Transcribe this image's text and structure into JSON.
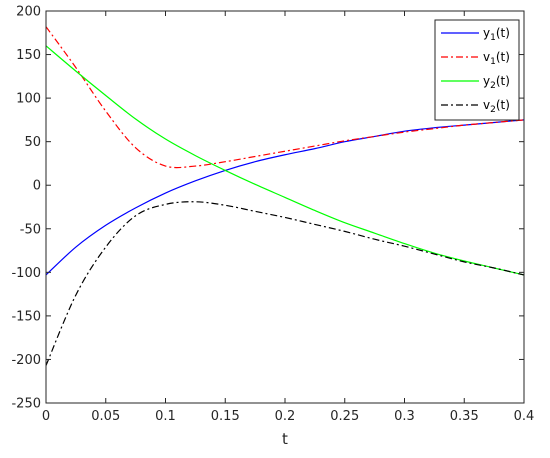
{
  "chart_data": {
    "type": "line",
    "title": "",
    "xlabel": "t",
    "ylabel": "",
    "xlim": [
      0,
      0.4
    ],
    "ylim": [
      -250,
      200
    ],
    "grid": false,
    "legend_position": "top-right",
    "x_ticks": [
      0,
      0.05,
      0.1,
      0.15,
      0.2,
      0.25,
      0.3,
      0.35,
      0.4
    ],
    "x_tick_labels": [
      "0",
      "0.05",
      "0.1",
      "0.15",
      "0.2",
      "0.25",
      "0.3",
      "0.35",
      "0.4"
    ],
    "y_ticks": [
      200,
      150,
      100,
      50,
      0,
      -50,
      -100,
      -150,
      -200,
      -250
    ],
    "y_tick_labels": [
      "200",
      "150",
      "100",
      "50",
      "0",
      "-50",
      "-100",
      "-150",
      "-200",
      "-250"
    ],
    "x": [
      0,
      0.025,
      0.05,
      0.075,
      0.1,
      0.125,
      0.15,
      0.175,
      0.2,
      0.225,
      0.25,
      0.275,
      0.3,
      0.325,
      0.35,
      0.375,
      0.4
    ],
    "series": [
      {
        "name": "y1(t)",
        "legend_base": "y",
        "legend_sub": "1",
        "legend_tail": "(t)",
        "color": "#0000ff",
        "dash": "",
        "values": [
          -103,
          -71,
          -46,
          -26,
          -9,
          5,
          17,
          27,
          35,
          42,
          50,
          56,
          62,
          66,
          69,
          72,
          75
        ]
      },
      {
        "name": "v1(t)",
        "legend_base": "v",
        "legend_sub": "1",
        "legend_tail": "(t)",
        "color": "#ff0000",
        "dash": "7,3,2,3",
        "values": [
          182,
          135,
          85,
          43,
          22,
          22,
          27,
          33,
          39,
          45,
          51,
          56,
          61,
          65,
          69,
          72,
          75
        ]
      },
      {
        "name": "y2(t)",
        "legend_base": "y",
        "legend_sub": "2",
        "legend_tail": "(t)",
        "color": "#00ff00",
        "dash": "",
        "values": [
          160,
          131,
          103,
          76,
          53,
          34,
          17,
          1,
          -14,
          -29,
          -43,
          -55,
          -67,
          -78,
          -87,
          -95,
          -103
        ]
      },
      {
        "name": "v2(t)",
        "legend_base": "v",
        "legend_sub": "2",
        "legend_tail": "(t)",
        "color": "#000000",
        "dash": "7,3,2,3",
        "values": [
          -207,
          -126,
          -71,
          -35,
          -22,
          -19,
          -23,
          -30,
          -37,
          -45,
          -53,
          -62,
          -70,
          -79,
          -88,
          -95,
          -103
        ]
      }
    ]
  }
}
